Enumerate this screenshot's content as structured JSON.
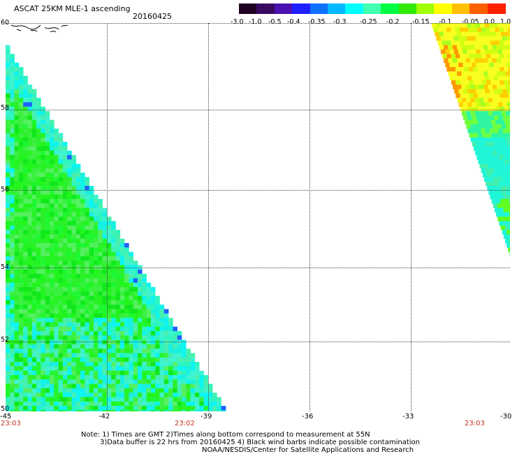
{
  "header": {
    "title": "ASCAT 25KM MLE-1 ascending",
    "date": "20160425"
  },
  "colorbar": {
    "segments": [
      "#200020",
      "#3a0a60",
      "#4a10b0",
      "#2020ff",
      "#1070ff",
      "#00b8ff",
      "#00ffff",
      "#40ffb0",
      "#00ff40",
      "#30e800",
      "#a0ff00",
      "#ffff00",
      "#ffc000",
      "#ff6000",
      "#ff2000"
    ],
    "labels": [
      "-3.0",
      "-1.0",
      "-0.5",
      "-0.4",
      "-0.35",
      "-0.3",
      "-0.25",
      "-0.2",
      "-0.15",
      "-0.1",
      "-0.05",
      "0.0",
      "1.0"
    ]
  },
  "axes": {
    "lat_labels": [
      "60",
      "58",
      "56",
      "54",
      "52",
      "50"
    ],
    "lon_labels": [
      "-45",
      "-42",
      "-39",
      "-36",
      "-33",
      "-30"
    ]
  },
  "times": [
    "23:03",
    "23:02",
    "23:03"
  ],
  "notes": {
    "line1": "Note: 1) Times are GMT 2)Times along bottom correspond to measurement at 55N",
    "line2": "3)Data buffer is 22 hrs from 20160425 4) Black wind barbs indicate possible contamination",
    "line3": "NOAA/NESDIS/Center for Satellite Applications and Research"
  }
}
